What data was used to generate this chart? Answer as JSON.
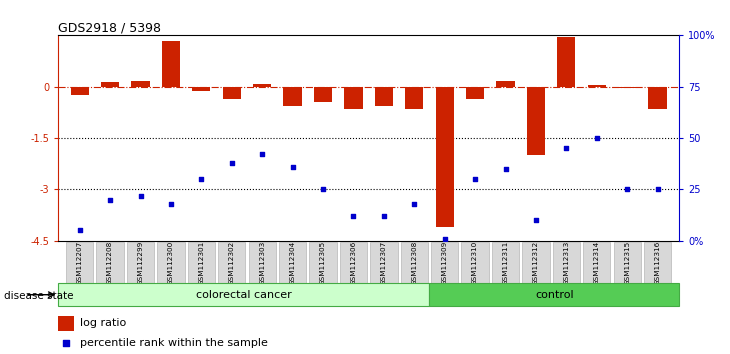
{
  "title": "GDS2918 / 5398",
  "samples": [
    "GSM112207",
    "GSM112208",
    "GSM112299",
    "GSM112300",
    "GSM112301",
    "GSM112302",
    "GSM112303",
    "GSM112304",
    "GSM112305",
    "GSM112306",
    "GSM112307",
    "GSM112308",
    "GSM112309",
    "GSM112310",
    "GSM112311",
    "GSM112312",
    "GSM112313",
    "GSM112314",
    "GSM112315",
    "GSM112316"
  ],
  "log_ratio": [
    -0.25,
    0.13,
    0.17,
    1.35,
    -0.12,
    -0.35,
    0.07,
    -0.55,
    -0.45,
    -0.65,
    -0.55,
    -0.65,
    -4.1,
    -0.35,
    0.18,
    -2.0,
    1.45,
    0.05,
    -0.05,
    -0.65
  ],
  "percentile_rank": [
    5,
    20,
    22,
    18,
    30,
    38,
    42,
    36,
    25,
    12,
    12,
    18,
    1,
    30,
    35,
    10,
    45,
    50,
    25,
    25
  ],
  "colorectal_count": 12,
  "control_count": 8,
  "ylim_left": [
    -4.5,
    1.5
  ],
  "ylim_right": [
    0,
    100
  ],
  "bar_color": "#cc2200",
  "dot_color": "#0000cc",
  "hline_color": "#cc2200",
  "colorectal_color": "#ccffcc",
  "control_color": "#55cc55",
  "colorectal_label": "colorectal cancer",
  "control_label": "control",
  "legend_bar": "log ratio",
  "legend_dot": "percentile rank within the sample",
  "disease_label": "disease state"
}
